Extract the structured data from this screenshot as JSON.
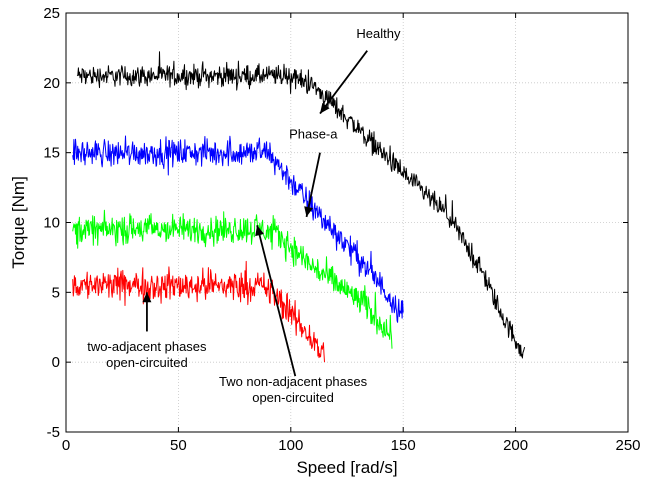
{
  "chart_data": {
    "type": "line",
    "title": "",
    "xlabel": "Speed [rad/s]",
    "ylabel": "Torque [Nm]",
    "xlim": [
      0,
      250
    ],
    "ylim": [
      -5,
      25
    ],
    "xticks": [
      0,
      50,
      100,
      150,
      200,
      250
    ],
    "yticks": [
      -5,
      0,
      5,
      10,
      15,
      20,
      25
    ],
    "grid": true,
    "series": [
      {
        "name": "Healthy",
        "color": "#000000",
        "noise": 1.1,
        "points": [
          [
            5,
            20.5
          ],
          [
            100,
            20.5
          ],
          [
            110,
            19.8
          ],
          [
            125,
            17.5
          ],
          [
            150,
            13.5
          ],
          [
            170,
            10.5
          ],
          [
            185,
            6.5
          ],
          [
            195,
            3.0
          ],
          [
            204,
            0.5
          ]
        ]
      },
      {
        "name": "Phase-a",
        "color": "#0000ff",
        "noise": 1.4,
        "points": [
          [
            3,
            15.0
          ],
          [
            90,
            15.0
          ],
          [
            100,
            13.0
          ],
          [
            110,
            11.0
          ],
          [
            130,
            7.5
          ],
          [
            150,
            3.5
          ]
        ]
      },
      {
        "name": "Two non-adjacent phases open-circuited",
        "color": "#00ff00",
        "noise": 1.5,
        "points": [
          [
            3,
            9.5
          ],
          [
            88,
            9.5
          ],
          [
            95,
            9.0
          ],
          [
            110,
            6.8
          ],
          [
            130,
            4.5
          ],
          [
            145,
            2.0
          ]
        ]
      },
      {
        "name": "two-adjacent phases open-circuited",
        "color": "#ff0000",
        "noise": 1.6,
        "points": [
          [
            3,
            5.5
          ],
          [
            85,
            5.5
          ],
          [
            92,
            5.0
          ],
          [
            105,
            2.5
          ],
          [
            115,
            0.5
          ]
        ]
      }
    ],
    "annotations": [
      {
        "lines": [
          "Healthy"
        ],
        "text_at": [
          139,
          23.2
        ],
        "arrow_from": [
          134,
          22.3
        ],
        "arrow_to": [
          113,
          17.8
        ]
      },
      {
        "lines": [
          "Phase-a"
        ],
        "text_at": [
          110,
          16.0
        ],
        "arrow_from": [
          113,
          15.0
        ],
        "arrow_to": [
          107,
          10.4
        ]
      },
      {
        "lines": [
          "Two non-adjacent phases",
          "open-circuited"
        ],
        "text_at": [
          101,
          -1.7
        ],
        "arrow_from": [
          102,
          -1.0
        ],
        "arrow_to": [
          85,
          9.8
        ]
      },
      {
        "lines": [
          "two-adjacent phases",
          "open-circuited"
        ],
        "text_at": [
          36,
          0.8
        ],
        "arrow_from": [
          36,
          2.2
        ],
        "arrow_to": [
          36,
          5.0
        ]
      }
    ]
  }
}
